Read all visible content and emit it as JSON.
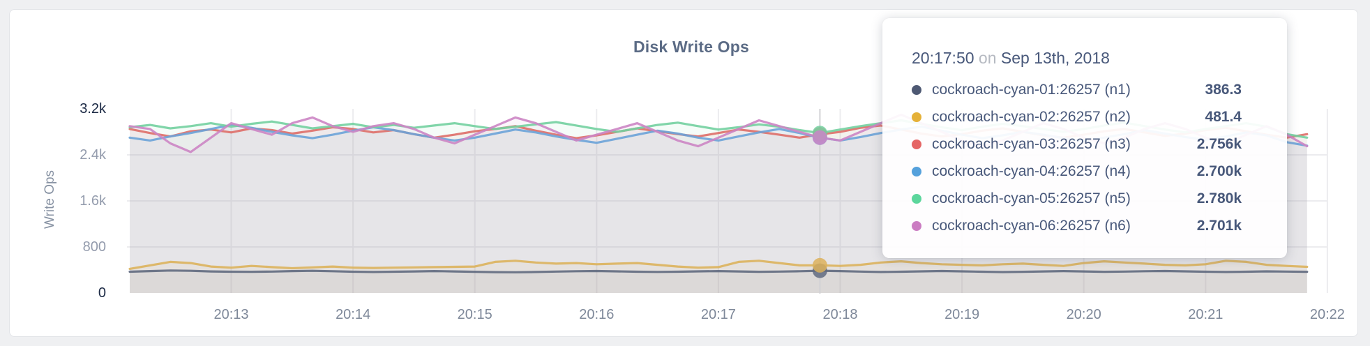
{
  "card": {
    "type": "metric-graph-panel"
  },
  "tooltip": {
    "time": "20:17:50",
    "conjunction": "on",
    "date": "Sep 13th, 2018",
    "rows": [
      {
        "label": "cockroach-cyan-01:26257 (n1)",
        "value": "386.3",
        "color": "#4e5973"
      },
      {
        "label": "cockroach-cyan-02:26257 (n2)",
        "value": "481.4",
        "color": "#e5b138"
      },
      {
        "label": "cockroach-cyan-03:26257 (n3)",
        "value": "2.756k",
        "color": "#e56565"
      },
      {
        "label": "cockroach-cyan-04:26257 (n4)",
        "value": "2.700k",
        "color": "#55a1dc"
      },
      {
        "label": "cockroach-cyan-05:26257 (n5)",
        "value": "2.780k",
        "color": "#5cd69c"
      },
      {
        "label": "cockroach-cyan-06:26257 (n6)",
        "value": "2.701k",
        "color": "#cb7cc2"
      }
    ]
  },
  "chart_data": {
    "type": "line",
    "title": "Disk Write Ops",
    "xlabel": "",
    "ylabel": "Write Ops",
    "ylim": [
      0,
      3200
    ],
    "grid": true,
    "legend_position": "hover-tooltip",
    "y_ticks": [
      {
        "label": "0",
        "value": 0,
        "emphasis": true
      },
      {
        "label": "800",
        "value": 800,
        "emphasis": false
      },
      {
        "label": "1.6k",
        "value": 1600,
        "emphasis": false
      },
      {
        "label": "2.4k",
        "value": 2400,
        "emphasis": false
      },
      {
        "label": "3.2k",
        "value": 3200,
        "emphasis": true
      }
    ],
    "x_tick_labels": [
      "20:13",
      "20:14",
      "20:15",
      "20:16",
      "20:17",
      "20:18",
      "20:19",
      "20:20",
      "20:21",
      "20:22"
    ],
    "x_start_time": "20:12:10",
    "x_step_seconds": 10,
    "hover": {
      "index": 34,
      "time": "20:17:50",
      "date": "Sep 13th, 2018"
    },
    "series": [
      {
        "name": "cockroach-cyan-01:26257 (n1)",
        "line_color": "#606a80",
        "dot_color": "#4e5973",
        "hover_value": 386.3,
        "values": [
          370,
          380,
          390,
          385,
          375,
          370,
          368,
          372,
          380,
          385,
          378,
          370,
          365,
          370,
          375,
          380,
          375,
          368,
          362,
          360,
          365,
          372,
          378,
          382,
          376,
          370,
          366,
          370,
          376,
          380,
          374,
          368,
          372,
          378,
          386.3,
          380,
          372,
          365,
          370,
          376,
          382,
          376,
          370,
          364,
          368,
          374,
          380,
          374,
          368,
          372,
          378,
          382,
          376,
          370,
          365,
          370,
          376,
          372,
          368
        ]
      },
      {
        "name": "cockroach-cyan-02:26257 (n2)",
        "line_color": "#dcb25c",
        "dot_color": "#e5b138",
        "hover_value": 481.4,
        "values": [
          420,
          480,
          540,
          520,
          460,
          440,
          470,
          450,
          430,
          445,
          460,
          440,
          435,
          440,
          445,
          450,
          455,
          460,
          540,
          560,
          530,
          510,
          520,
          500,
          510,
          520,
          490,
          460,
          440,
          450,
          540,
          560,
          520,
          480,
          481.4,
          470,
          490,
          530,
          550,
          520,
          500,
          490,
          480,
          500,
          510,
          490,
          470,
          520,
          550,
          530,
          510,
          490,
          480,
          500,
          560,
          540,
          490,
          470,
          455
        ]
      },
      {
        "name": "cockroach-cyan-03:26257 (n3)",
        "line_color": "#de6e68",
        "dot_color": "#e56565",
        "hover_value": 2756,
        "values": [
          2850,
          2780,
          2720,
          2810,
          2840,
          2790,
          2860,
          2830,
          2770,
          2820,
          2880,
          2850,
          2790,
          2830,
          2760,
          2700,
          2750,
          2810,
          2850,
          2900,
          2820,
          2750,
          2690,
          2740,
          2800,
          2860,
          2810,
          2760,
          2720,
          2780,
          2840,
          2800,
          2750,
          2700,
          2756,
          2800,
          2870,
          2910,
          2840,
          2770,
          2720,
          2760,
          2820,
          2860,
          2800,
          2740,
          2700,
          2750,
          2810,
          2850,
          2790,
          2730,
          2770,
          2830,
          2870,
          2810,
          2750,
          2700,
          2760
        ]
      },
      {
        "name": "cockroach-cyan-04:26257 (n4)",
        "line_color": "#6ba3d8",
        "dot_color": "#55a1dc",
        "hover_value": 2700,
        "values": [
          2700,
          2650,
          2720,
          2780,
          2850,
          2920,
          2870,
          2800,
          2740,
          2690,
          2750,
          2820,
          2880,
          2830,
          2760,
          2700,
          2650,
          2700,
          2770,
          2840,
          2790,
          2720,
          2660,
          2610,
          2680,
          2750,
          2820,
          2770,
          2700,
          2650,
          2720,
          2790,
          2850,
          2780,
          2700,
          2650,
          2710,
          2780,
          2840,
          2890,
          2820,
          2750,
          2690,
          2740,
          2800,
          2750,
          2690,
          2640,
          2700,
          2760,
          2830,
          2770,
          2710,
          2660,
          2720,
          2790,
          2740,
          2620,
          2560
        ]
      },
      {
        "name": "cockroach-cyan-05:26257 (n5)",
        "line_color": "#73d0a0",
        "dot_color": "#5cd69c",
        "hover_value": 2780,
        "values": [
          2880,
          2920,
          2860,
          2900,
          2950,
          2890,
          2940,
          2980,
          2920,
          2860,
          2900,
          2940,
          2880,
          2920,
          2870,
          2910,
          2950,
          2900,
          2850,
          2890,
          2930,
          2970,
          2910,
          2850,
          2800,
          2860,
          2920,
          2960,
          2900,
          2840,
          2880,
          2930,
          2890,
          2830,
          2780,
          2840,
          2900,
          2950,
          3000,
          2940,
          2880,
          2830,
          2890,
          2940,
          2900,
          2850,
          2800,
          2850,
          2910,
          2960,
          2900,
          2840,
          2790,
          2850,
          2900,
          2950,
          2890,
          2760,
          2700
        ]
      },
      {
        "name": "cockroach-cyan-06:26257 (n6)",
        "line_color": "#cc85c4",
        "dot_color": "#cb7cc2",
        "hover_value": 2701,
        "values": [
          2900,
          2850,
          2600,
          2450,
          2700,
          2950,
          2850,
          2750,
          2950,
          3050,
          2900,
          2800,
          2900,
          2950,
          2850,
          2700,
          2600,
          2750,
          2900,
          3050,
          2950,
          2800,
          2650,
          2750,
          2850,
          2950,
          2800,
          2650,
          2550,
          2700,
          2850,
          3000,
          2900,
          2800,
          2701,
          2650,
          2800,
          2950,
          3100,
          2950,
          2800,
          2650,
          2550,
          2650,
          2800,
          2950,
          2850,
          2700,
          2600,
          2700,
          2850,
          2950,
          2850,
          2700,
          2600,
          2750,
          2900,
          2750,
          2550
        ]
      }
    ]
  }
}
